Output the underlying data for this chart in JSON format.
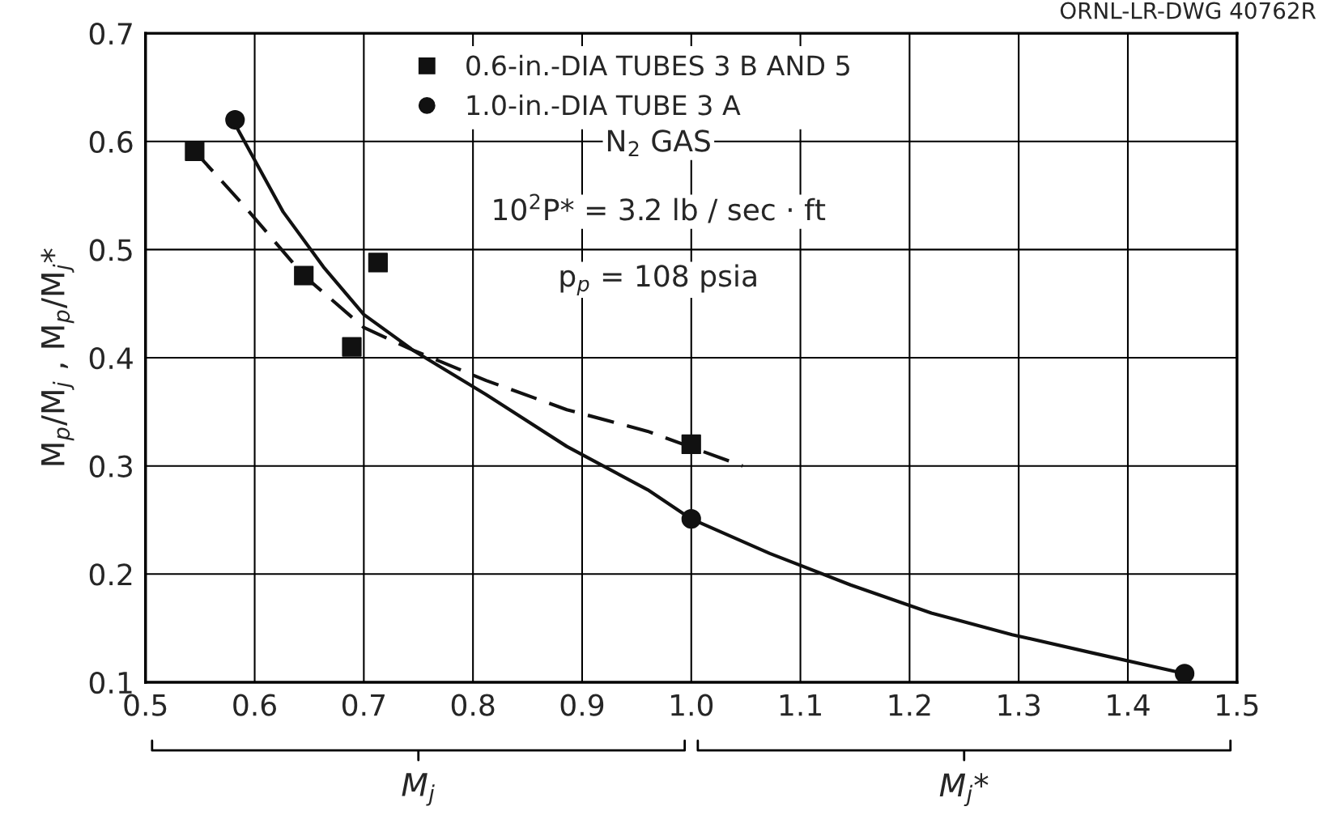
{
  "chart_data": {
    "type": "scatter",
    "ylabel": "M$_{p}$/M$_{j}$ , M$_{p}$/M$_{j}$*",
    "annotations": [
      "ORNL-LR-DWG 40762R",
      "N$_{2}$ GAS",
      "10$^{2}$P* = 3.2 lb / sec · ft",
      "p$_{p}$ = 108 psia",
      "M$_{j}$",
      "M$_{j}$*"
    ],
    "series": [
      {
        "name": "0.6-in.-DIA TUBES 3 B AND 5",
        "marker": "square",
        "color": "#111111",
        "x": [
          0.545,
          0.645,
          0.689,
          0.713,
          1.0
        ],
        "values": [
          0.591,
          0.476,
          0.41,
          0.488,
          0.32
        ]
      },
      {
        "name": "1.0-in.-DIA TUBE 3 A",
        "marker": "circle",
        "color": "#111111",
        "x": [
          0.582,
          1.0,
          1.452
        ],
        "values": [
          0.62,
          0.251,
          0.108
        ]
      },
      {
        "type": "line",
        "line_style": "dashed",
        "color": "#111111",
        "x": [
          0.545,
          0.589,
          0.645,
          0.7,
          0.745,
          0.812,
          0.886,
          0.96,
          1.047
        ],
        "values": [
          0.591,
          0.542,
          0.476,
          0.428,
          0.407,
          0.379,
          0.352,
          0.332,
          0.3
        ]
      },
      {
        "type": "line",
        "line_style": "solid",
        "color": "#111111",
        "x": [
          0.582,
          0.626,
          0.663,
          0.7,
          0.745,
          0.812,
          0.886,
          0.96,
          1.0,
          1.072,
          1.146,
          1.22,
          1.294,
          1.368,
          1.452
        ],
        "values": [
          0.616,
          0.535,
          0.484,
          0.44,
          0.407,
          0.366,
          0.318,
          0.278,
          0.251,
          0.219,
          0.19,
          0.164,
          0.144,
          0.127,
          0.108
        ]
      }
    ],
    "xlim": [
      0.5,
      1.5
    ],
    "ylim": [
      0.1,
      0.7
    ],
    "xticks": [
      0.5,
      0.6,
      0.7,
      0.8,
      0.9,
      {
        "value": 1.0,
        "label": "1.0"
      },
      1.1,
      1.2,
      1.3,
      1.4,
      1.5
    ],
    "yticks": [
      0.1,
      0.2,
      0.3,
      0.4,
      0.5,
      0.6,
      0.7
    ],
    "grid": true,
    "legend": "top"
  }
}
